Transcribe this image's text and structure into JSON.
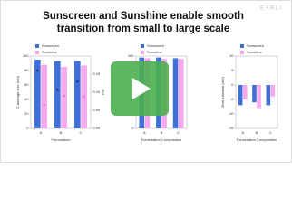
{
  "header": {
    "title": "Sunscreen and Sunshine enable smooth transition from small to large scale",
    "logo": "EARLI"
  },
  "chart_data": [
    {
      "type": "bar",
      "x_label": "Formulation",
      "y_label": "Z-average size (nm)",
      "y2_label": "PDI",
      "categories": [
        "A",
        "B",
        "C"
      ],
      "series": [
        {
          "name": "Sunscreen",
          "color": "#3f6fd8",
          "values": [
            95,
            93,
            93
          ]
        },
        {
          "name": "Sunshine",
          "color": "#f5a9ec",
          "values": [
            88,
            85,
            87
          ]
        },
        {
          "type": "scatter",
          "axis": "y2",
          "color": "#1d3a85",
          "values": [
            0.16,
            0.107,
            0.13
          ]
        },
        {
          "type": "scatter",
          "axis": "y2",
          "color": "#e07fd0",
          "values": [
            0.065,
            0.09,
            0.088
          ]
        }
      ],
      "ylim": [
        0,
        100
      ],
      "yticks": [
        0,
        20,
        40,
        60,
        80,
        100
      ],
      "y2lim": [
        0,
        0.2
      ],
      "y2ticks": [
        {
          "value": 0,
          "label": "0.00"
        },
        {
          "value": 0.05,
          "label": "0.05"
        },
        {
          "value": 0.1,
          "label": "0.10"
        },
        {
          "value": 0.15,
          "label": "0.15"
        }
      ]
    },
    {
      "type": "bar",
      "x_label": "Formulation Composition",
      "categories": [
        "A",
        "B",
        "C"
      ],
      "series": [
        {
          "name": "Sunscreen",
          "color": "#3f6fd8",
          "values": [
            98,
            98,
            97
          ]
        },
        {
          "name": "Sunshine",
          "color": "#f5a9ec",
          "values": [
            97,
            96,
            96
          ]
        }
      ],
      "ylim": [
        0,
        100
      ],
      "yticks": [
        0,
        20,
        40,
        60,
        80,
        100
      ]
    },
    {
      "type": "bar",
      "x_label": "Formulation Composition",
      "y_label": "Zeta potential (mV)",
      "categories": [
        "A",
        "B",
        "C"
      ],
      "series": [
        {
          "name": "Sunscreen",
          "color": "#3f6fd8",
          "values": [
            -7,
            -6,
            -7
          ]
        },
        {
          "name": "Sunshine",
          "color": "#f5a9ec",
          "values": [
            -5,
            -8,
            -4
          ]
        }
      ],
      "ylim": [
        -15,
        10
      ],
      "yticks": [
        -15,
        -10,
        -5,
        0,
        5,
        10
      ]
    }
  ]
}
